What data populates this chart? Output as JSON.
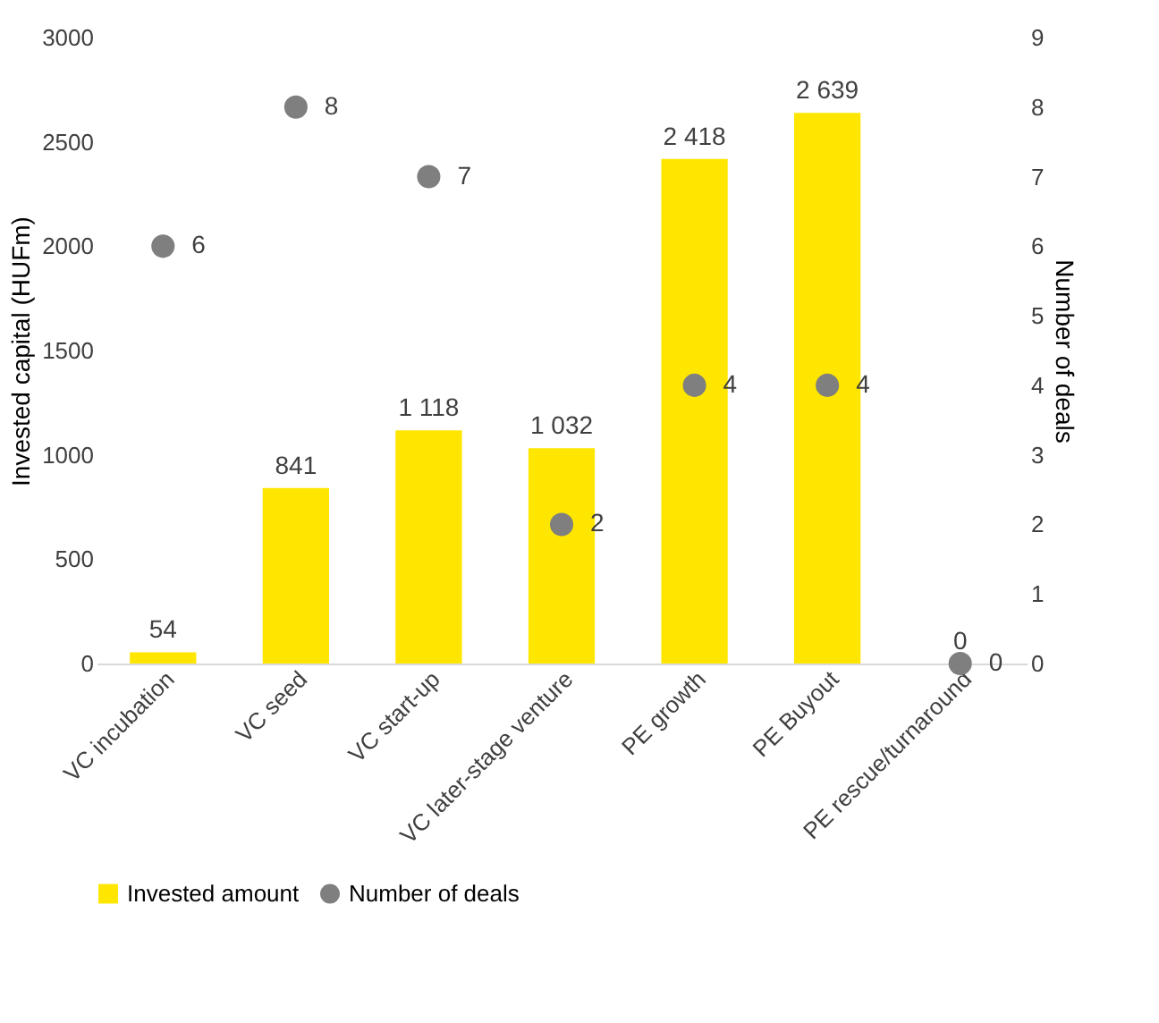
{
  "chart_data": {
    "type": "bar",
    "categories": [
      "VC incubation",
      "VC seed",
      "VC start-up",
      "VC later-stage venture",
      "PE growth",
      "PE Buyout",
      "PE rescue/turnaround"
    ],
    "series": [
      {
        "name": "Invested amount",
        "color": "#ffe600",
        "values": [
          54,
          841,
          1118,
          1032,
          2418,
          2639,
          0
        ],
        "value_labels": [
          "54",
          "841",
          "1 118",
          "1 032",
          "2 418",
          "2 639",
          "0"
        ]
      },
      {
        "name": "Number of deals",
        "type": "scatter",
        "axis": "y2",
        "color": "#7f7f7f",
        "marker": "circle",
        "values": [
          6,
          8,
          7,
          2,
          4,
          4,
          0
        ],
        "value_labels": [
          "6",
          "8",
          "7",
          "2",
          "4",
          "4",
          "0"
        ]
      }
    ],
    "ylabel": "Invested capital (HUFm)",
    "y2label": "Number of deals",
    "ylim": [
      0,
      3000
    ],
    "yticks": [
      0,
      500,
      1000,
      1500,
      2000,
      2500,
      3000
    ],
    "y2lim": [
      0,
      9
    ],
    "y2ticks": [
      0,
      1,
      2,
      3,
      4,
      5,
      6,
      7,
      8,
      9
    ],
    "grid": false,
    "legend": "bottom"
  }
}
